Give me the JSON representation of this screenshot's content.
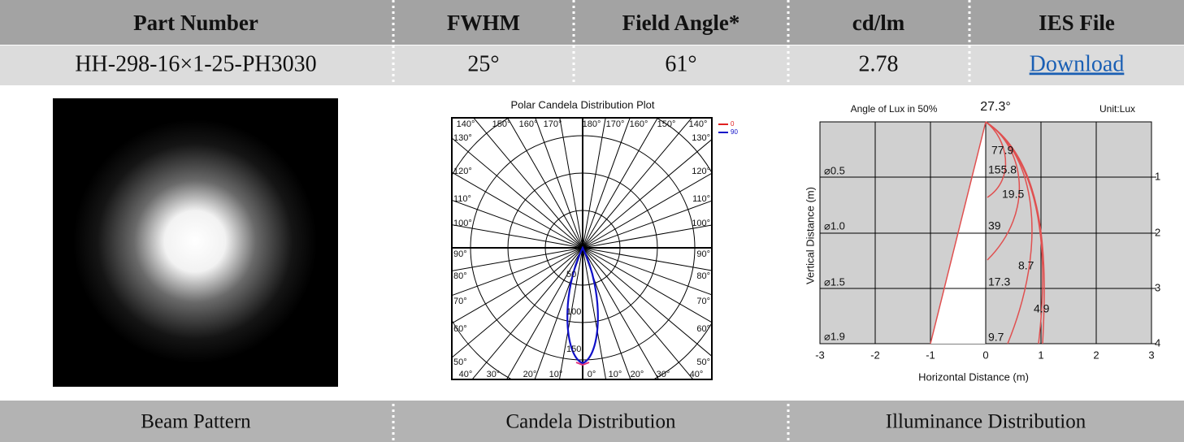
{
  "table": {
    "headers": [
      "Part Number",
      "FWHM",
      "Field Angle*",
      "cd/lm",
      "IES File"
    ],
    "row": [
      "HH-298-16×1-25-PH3030",
      "25°",
      "61°",
      "2.78",
      "Download"
    ],
    "captions": [
      "Beam Pattern",
      "Candela Distribution",
      "Illuminance Distribution"
    ]
  },
  "polar_plot": {
    "title": "Polar Candela Distribution Plot",
    "legend": [
      "0",
      "90"
    ],
    "top_labels": [
      "140°",
      "150°",
      "160°",
      "170°",
      "180°",
      "170°",
      "160°",
      "150°",
      "140°"
    ],
    "side_labels": [
      "130°",
      "120°",
      "110°",
      "100°",
      "90°",
      "80°",
      "70°",
      "60°",
      "50°"
    ],
    "bottom_labels": [
      "40°",
      "30°",
      "20°",
      "10°",
      "0°",
      "10°",
      "20°",
      "30°",
      "40°"
    ],
    "radial_labels": [
      "50",
      "100",
      "150"
    ]
  },
  "illuminance_plot": {
    "title": "Angle of Lux in 50%",
    "angle": "27.3°",
    "unit": "Unit:Lux",
    "x_label": "Horizontal Distance (m)",
    "y_label": "Vertical Distance (m)",
    "x_ticks": [
      "-3",
      "-2",
      "-1",
      "0",
      "1",
      "2",
      "3"
    ],
    "y_ticks": [
      "1",
      "2",
      "3",
      "4"
    ],
    "diameters": [
      "⌀0.5",
      "⌀1.0",
      "⌀1.5",
      "⌀1.9"
    ],
    "lux": [
      "77.9",
      "155.8",
      "19.5",
      "39",
      "8.7",
      "17.3",
      "4.9",
      "9.7"
    ]
  }
}
